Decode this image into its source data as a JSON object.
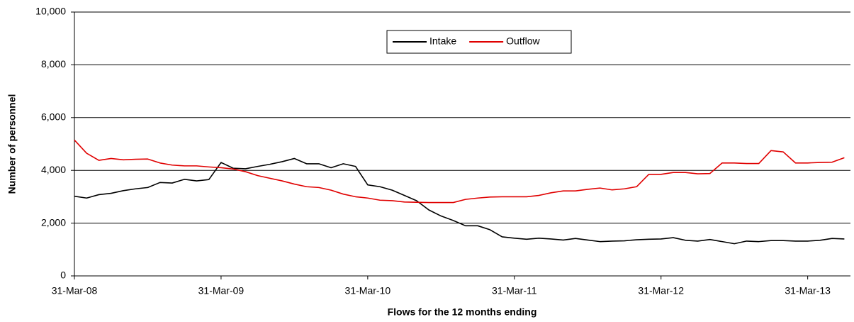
{
  "chart_data": {
    "type": "line",
    "x_label": "Flows for the 12 months ending",
    "y_label": "Number of personnel",
    "categories": [
      "31-Mar-08",
      null,
      null,
      null,
      null,
      null,
      null,
      null,
      null,
      null,
      null,
      null,
      "31-Mar-09",
      null,
      null,
      null,
      null,
      null,
      null,
      null,
      null,
      null,
      null,
      null,
      "31-Mar-10",
      null,
      null,
      null,
      null,
      null,
      null,
      null,
      null,
      null,
      null,
      null,
      "31-Mar-11",
      null,
      null,
      null,
      null,
      null,
      null,
      null,
      null,
      null,
      null,
      null,
      "31-Mar-12",
      null,
      null,
      null,
      null,
      null,
      null,
      null,
      null,
      null,
      null,
      null,
      "31-Mar-13",
      null,
      null,
      null
    ],
    "series": [
      {
        "name": "Intake",
        "color": "#000000",
        "values": [
          3020,
          2950,
          3080,
          3130,
          3230,
          3300,
          3350,
          3540,
          3520,
          3660,
          3600,
          3650,
          4300,
          4080,
          4060,
          4150,
          4230,
          4330,
          4450,
          4250,
          4250,
          4100,
          4250,
          4150,
          3450,
          3380,
          3250,
          3050,
          2850,
          2500,
          2270,
          2100,
          1900,
          1900,
          1750,
          1480,
          1430,
          1390,
          1430,
          1400,
          1360,
          1420,
          1360,
          1300,
          1320,
          1330,
          1370,
          1390,
          1400,
          1450,
          1350,
          1320,
          1380,
          1300,
          1220,
          1320,
          1300,
          1340,
          1340,
          1320,
          1320,
          1350,
          1420,
          1400
        ]
      },
      {
        "name": "Outflow",
        "color": "#e00000",
        "values": [
          5150,
          4650,
          4380,
          4450,
          4400,
          4420,
          4430,
          4280,
          4200,
          4170,
          4170,
          4130,
          4100,
          4050,
          3950,
          3800,
          3700,
          3600,
          3480,
          3380,
          3350,
          3250,
          3100,
          3000,
          2950,
          2870,
          2850,
          2800,
          2790,
          2780,
          2780,
          2780,
          2900,
          2950,
          2990,
          3000,
          3000,
          3000,
          3050,
          3150,
          3220,
          3220,
          3280,
          3330,
          3260,
          3300,
          3380,
          3850,
          3850,
          3920,
          3920,
          3870,
          3880,
          4280,
          4280,
          4260,
          4260,
          4750,
          4700,
          4280,
          4280,
          4300,
          4310,
          4480
        ]
      }
    ],
    "ylim": [
      0,
      10000
    ],
    "yticks": [
      0,
      {
        "value": 2000,
        "label": "2,000"
      },
      {
        "value": 4000,
        "label": "4,000"
      },
      {
        "value": 6000,
        "label": "6,000"
      },
      {
        "value": 8000,
        "label": "8,000"
      },
      {
        "value": 10000,
        "label": "10,000"
      }
    ],
    "grid": true,
    "legend": "top"
  }
}
